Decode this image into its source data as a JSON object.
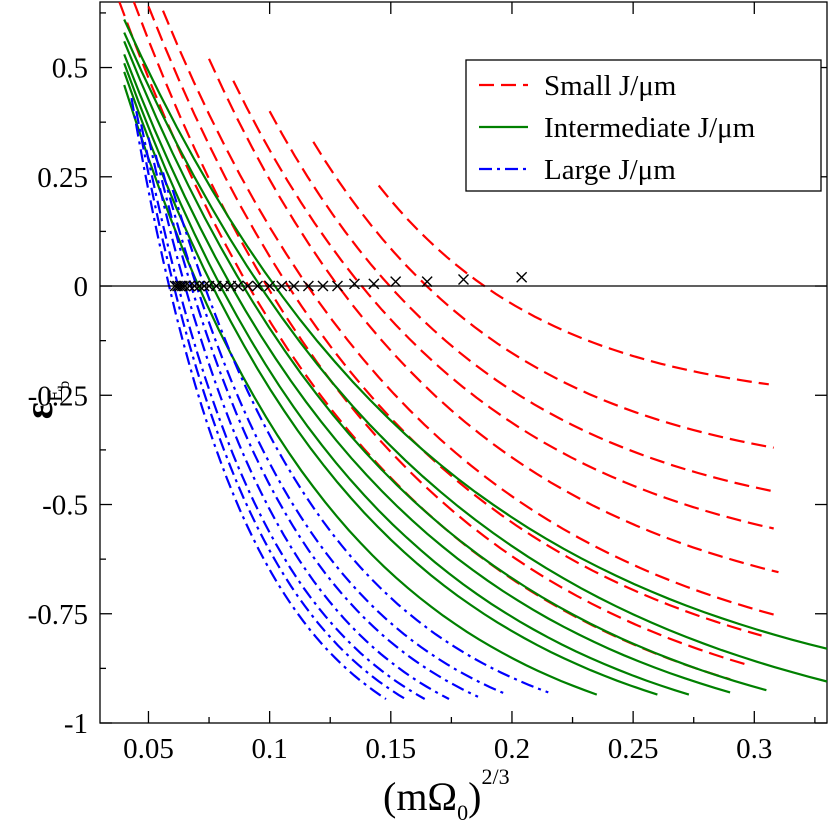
{
  "chart_data": {
    "type": "line",
    "title": "",
    "xlabel": "(mΩ0)^2/3",
    "xlabel_parts": {
      "base": "(mΩ",
      "sub": "0",
      "close": ")",
      "sup": "2/3"
    },
    "ylabel": "εEb",
    "ylabel_parts": {
      "base": "ε",
      "sub": "E",
      "subsub": "b"
    },
    "xlim": [
      0.03,
      0.33
    ],
    "ylim": [
      -1.0,
      0.65
    ],
    "grid": false,
    "legend_position": "top-right",
    "x_ticks": [
      {
        "value": 0.05,
        "label": "0.05"
      },
      {
        "value": 0.1,
        "label": "0.1"
      },
      {
        "value": 0.15,
        "label": "0.15"
      },
      {
        "value": 0.2,
        "label": "0.2"
      },
      {
        "value": 0.25,
        "label": "0.25"
      },
      {
        "value": 0.3,
        "label": "0.3"
      }
    ],
    "y_ticks": [
      {
        "value": 0.5,
        "label": "0.5"
      },
      {
        "value": 0.25,
        "label": "0.25"
      },
      {
        "value": 0,
        "label": "0"
      },
      {
        "value": -0.25,
        "label": "-0.25"
      },
      {
        "value": -0.5,
        "label": "-0.5"
      },
      {
        "value": -0.75,
        "label": "-0.75"
      },
      {
        "value": -1,
        "label": "-1"
      }
    ],
    "reference_line_y": 0,
    "legend": [
      {
        "label": "Small J/μm",
        "color": "#ff0000",
        "style": "dashed"
      },
      {
        "label": "Intermediate J/μm",
        "color": "#008000",
        "style": "solid"
      },
      {
        "label": "Large J/μm",
        "color": "#0000ff",
        "style": "dashdot"
      }
    ],
    "series": [
      {
        "group": "Small J/μm",
        "color": "#ff0000",
        "style": "dashed",
        "x": [
          0.038,
          0.29
        ],
        "y": [
          0.65,
          -0.9
        ]
      },
      {
        "group": "Small J/μm",
        "color": "#ff0000",
        "style": "dashed",
        "x": [
          0.044,
          0.296
        ],
        "y": [
          0.65,
          -0.865
        ]
      },
      {
        "group": "Small J/μm",
        "color": "#ff0000",
        "style": "dashed",
        "x": [
          0.05,
          0.303
        ],
        "y": [
          0.64,
          -0.8
        ]
      },
      {
        "group": "Small J/μm",
        "color": "#ff0000",
        "style": "dashed",
        "x": [
          0.056,
          0.31
        ],
        "y": [
          0.63,
          -0.755
        ]
      },
      {
        "group": "Small J/μm",
        "color": "#ff0000",
        "style": "dashed",
        "x": [
          0.075,
          0.31
        ],
        "y": [
          0.52,
          -0.655
        ]
      },
      {
        "group": "Small J/μm",
        "color": "#ff0000",
        "style": "dashed",
        "x": [
          0.085,
          0.308
        ],
        "y": [
          0.47,
          -0.555
        ]
      },
      {
        "group": "Small J/μm",
        "color": "#ff0000",
        "style": "dashed",
        "x": [
          0.1,
          0.308
        ],
        "y": [
          0.4,
          -0.47
        ]
      },
      {
        "group": "Small J/μm",
        "color": "#ff0000",
        "style": "dashed",
        "x": [
          0.118,
          0.308
        ],
        "y": [
          0.33,
          -0.37
        ]
      },
      {
        "group": "Small J/μm",
        "color": "#ff0000",
        "style": "dashed",
        "x": [
          0.145,
          0.306
        ],
        "y": [
          0.23,
          -0.225
        ]
      },
      {
        "group": "Intermediate J/μm",
        "color": "#008000",
        "style": "solid",
        "x": [
          0.04,
          0.235
        ],
        "y": [
          0.46,
          -0.935
        ]
      },
      {
        "group": "Intermediate J/μm",
        "color": "#008000",
        "style": "solid",
        "x": [
          0.04,
          0.26
        ],
        "y": [
          0.49,
          -0.935
        ]
      },
      {
        "group": "Intermediate J/μm",
        "color": "#008000",
        "style": "solid",
        "x": [
          0.04,
          0.273
        ],
        "y": [
          0.51,
          -0.935
        ]
      },
      {
        "group": "Intermediate J/μm",
        "color": "#008000",
        "style": "solid",
        "x": [
          0.04,
          0.29
        ],
        "y": [
          0.53,
          -0.93
        ]
      },
      {
        "group": "Intermediate J/μm",
        "color": "#008000",
        "style": "solid",
        "x": [
          0.04,
          0.305
        ],
        "y": [
          0.56,
          -0.925
        ]
      },
      {
        "group": "Intermediate J/μm",
        "color": "#008000",
        "style": "solid",
        "x": [
          0.04,
          0.33
        ],
        "y": [
          0.58,
          -0.905
        ]
      },
      {
        "group": "Intermediate J/μm",
        "color": "#008000",
        "style": "solid",
        "x": [
          0.04,
          0.33
        ],
        "y": [
          0.61,
          -0.83
        ]
      },
      {
        "group": "Large J/μm",
        "color": "#0000ff",
        "style": "dashdot",
        "x": [
          0.043,
          0.148
        ],
        "y": [
          0.43,
          -0.945
        ]
      },
      {
        "group": "Large J/μm",
        "color": "#0000ff",
        "style": "dashdot",
        "x": [
          0.045,
          0.156
        ],
        "y": [
          0.4,
          -0.945
        ]
      },
      {
        "group": "Large J/μm",
        "color": "#0000ff",
        "style": "dashdot",
        "x": [
          0.047,
          0.164
        ],
        "y": [
          0.37,
          -0.945
        ]
      },
      {
        "group": "Large J/μm",
        "color": "#0000ff",
        "style": "dashdot",
        "x": [
          0.05,
          0.174
        ],
        "y": [
          0.34,
          -0.945
        ]
      },
      {
        "group": "Large J/μm",
        "color": "#0000ff",
        "style": "dashdot",
        "x": [
          0.053,
          0.186
        ],
        "y": [
          0.3,
          -0.94
        ]
      },
      {
        "group": "Large J/μm",
        "color": "#0000ff",
        "style": "dashdot",
        "x": [
          0.056,
          0.198
        ],
        "y": [
          0.26,
          -0.935
        ]
      },
      {
        "group": "Large J/μm",
        "color": "#0000ff",
        "style": "dashdot",
        "x": [
          0.06,
          0.215
        ],
        "y": [
          0.22,
          -0.93
        ]
      }
    ],
    "crossings": {
      "marker": "x",
      "color": "#000000",
      "x": [
        0.061,
        0.062,
        0.063,
        0.064,
        0.065,
        0.067,
        0.069,
        0.071,
        0.073,
        0.075,
        0.078,
        0.081,
        0.084,
        0.087,
        0.091,
        0.095,
        0.1,
        0.105,
        0.11,
        0.116,
        0.122,
        0.128,
        0.135,
        0.143,
        0.152,
        0.165,
        0.18,
        0.204
      ],
      "y": [
        0,
        0,
        0,
        0,
        0,
        0,
        0,
        0,
        0,
        0,
        0,
        0,
        0,
        0,
        0,
        0,
        0,
        0,
        0,
        0,
        0,
        0,
        0.005,
        0.005,
        0.01,
        0.01,
        0.015,
        0.02
      ]
    }
  }
}
